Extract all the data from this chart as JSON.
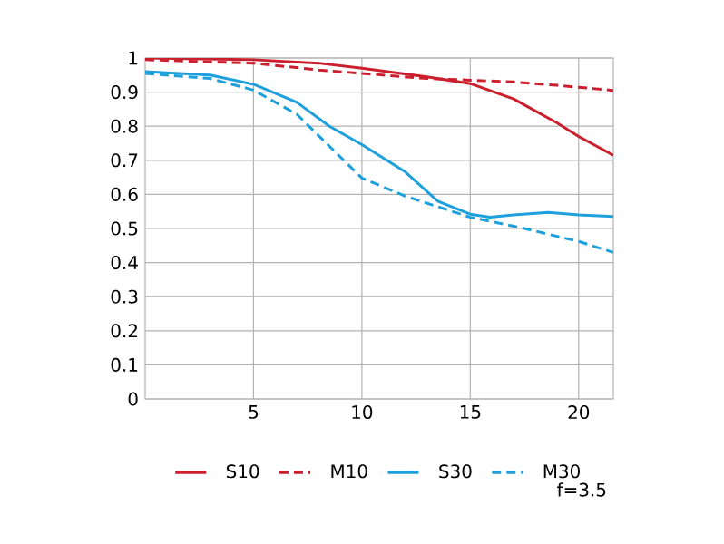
{
  "chart_data": {
    "type": "line",
    "xlim": [
      0,
      21.6
    ],
    "ylim": [
      0,
      1
    ],
    "xticks": [
      5,
      10,
      15,
      20
    ],
    "yticks": [
      0,
      0.1,
      0.2,
      0.3,
      0.4,
      0.5,
      0.6,
      0.7,
      0.8,
      0.9,
      1
    ],
    "grid": true,
    "legend": "bottom",
    "annotations": [
      "f=3.5"
    ],
    "series": [
      {
        "name": "S10",
        "color": "#cc1f2e",
        "line_style": "solid",
        "x": [
          0,
          5,
          8,
          10,
          13,
          15,
          17,
          19,
          20,
          21.6
        ],
        "values": [
          1.0,
          0.995,
          0.985,
          0.97,
          0.945,
          0.925,
          0.88,
          0.81,
          0.77,
          0.715
        ]
      },
      {
        "name": "M10",
        "color": "#cc1f2e",
        "line_style": "dashed",
        "x": [
          0,
          5,
          8,
          10,
          13,
          15,
          17,
          19,
          21.6
        ],
        "values": [
          0.995,
          0.985,
          0.965,
          0.955,
          0.94,
          0.935,
          0.93,
          0.92,
          0.905
        ]
      },
      {
        "name": "S30",
        "color": "#1ea0dc",
        "line_style": "solid",
        "x": [
          0,
          3,
          5,
          7,
          8.5,
          10,
          12,
          13.5,
          15,
          15.9,
          17,
          18.6,
          20,
          21.6
        ],
        "values": [
          0.96,
          0.95,
          0.923,
          0.87,
          0.8,
          0.746,
          0.666,
          0.58,
          0.542,
          0.533,
          0.54,
          0.547,
          0.54,
          0.535
        ]
      },
      {
        "name": "M30",
        "color": "#1ea0dc",
        "line_style": "dashed",
        "x": [
          0,
          3,
          5,
          7,
          9,
          10,
          12,
          15,
          17.5,
          20,
          21.6
        ],
        "values": [
          0.955,
          0.94,
          0.906,
          0.835,
          0.71,
          0.648,
          0.595,
          0.533,
          0.5,
          0.462,
          0.43
        ]
      }
    ]
  }
}
